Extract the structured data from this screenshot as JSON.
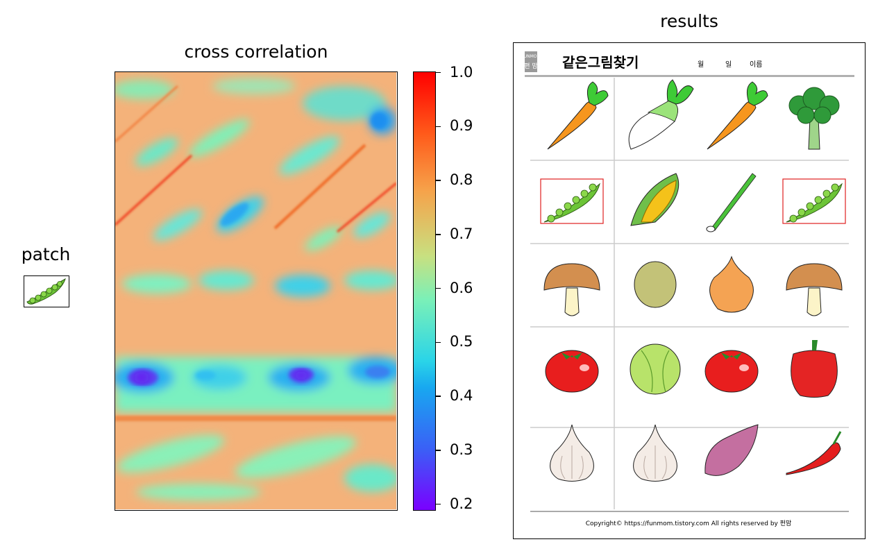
{
  "panels": {
    "patch_title": "patch",
    "heatmap_title": "cross correlation",
    "results_title": "results"
  },
  "colorbar": {
    "min": 0.19,
    "max": 1.0,
    "ticks": [
      "1.0",
      "0.9",
      "0.8",
      "0.7",
      "0.6",
      "0.5",
      "0.4",
      "0.3",
      "0.2"
    ],
    "colormap": "rainbow"
  },
  "chart_data": {
    "type": "heatmap",
    "title": "cross correlation",
    "colormap": "rainbow",
    "value_range": [
      0.19,
      1.0
    ],
    "colorbar_ticks": [
      1.0,
      0.9,
      0.8,
      0.7,
      0.6,
      0.5,
      0.4,
      0.3,
      0.2
    ],
    "axes_ticks": "none",
    "grid": false,
    "description_values": {
      "background_level": 0.78,
      "peak_max": 1.0,
      "minimum": 0.19
    }
  },
  "worksheet": {
    "brand_top": "FUNMOM",
    "brand_bottom": "편 맘",
    "title": "같은그림찾기",
    "month_label": "월",
    "day_label": "일",
    "name_label": "이름",
    "footer": "Copyright© https://funmom.tistory.com    All rights reserved by 펀맘",
    "rows": [
      [
        "carrot",
        "radish",
        "carrot",
        "broccoli"
      ],
      [
        "peapod",
        "corn",
        "green-onion",
        "peapod"
      ],
      [
        "mushroom",
        "potato",
        "onion",
        "mushroom"
      ],
      [
        "tomato",
        "cabbage",
        "tomato",
        "bell-pepper"
      ],
      [
        "garlic",
        "garlic",
        "sweet-potato",
        "chili-pepper"
      ]
    ],
    "match_row": 1,
    "match_cols": [
      0,
      3
    ],
    "highlight_color": "#e02020"
  },
  "colors": {
    "accent_red": "#e02020",
    "grid_line": "#cccccc"
  }
}
